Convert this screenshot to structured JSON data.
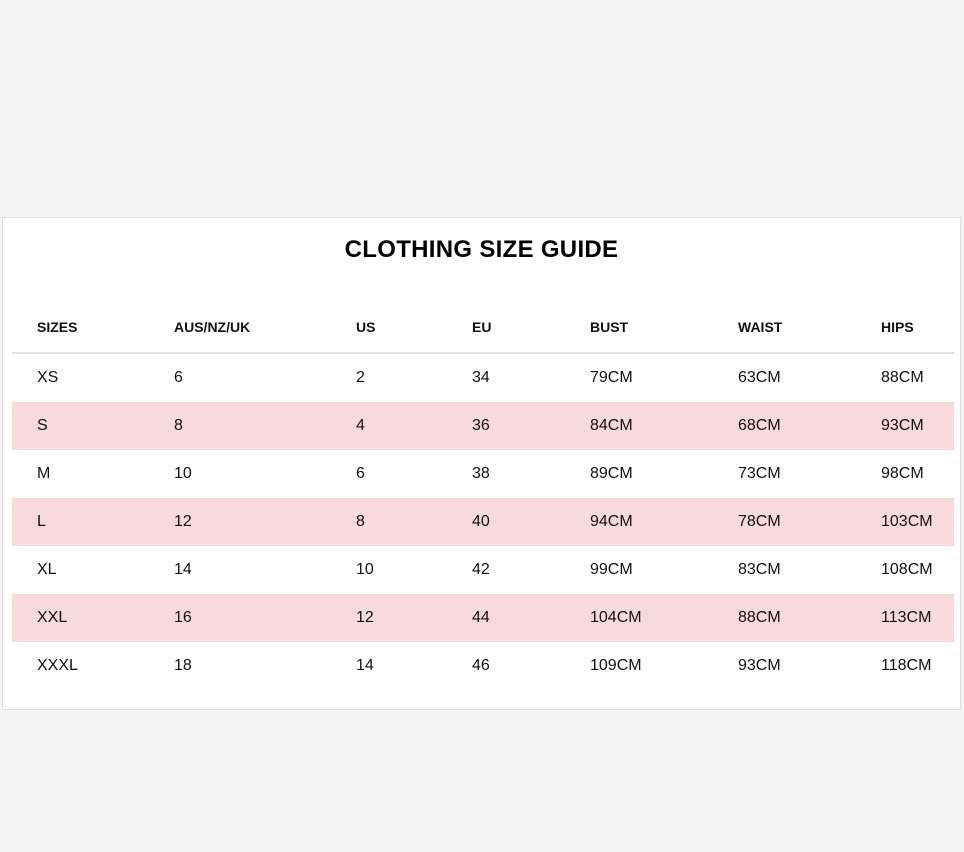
{
  "title": "CLOTHING SIZE GUIDE",
  "colors": {
    "stripe": "#f8d9dc",
    "background": "#f5f5f5"
  },
  "headers": [
    "SIZES",
    "AUS/NZ/UK",
    "US",
    "EU",
    "BUST",
    "WAIST",
    "HIPS"
  ],
  "rows": [
    [
      "XS",
      "6",
      "2",
      "34",
      "79CM",
      "63CM",
      "88CM"
    ],
    [
      "S",
      "8",
      "4",
      "36",
      "84CM",
      "68CM",
      "93CM"
    ],
    [
      "M",
      "10",
      "6",
      "38",
      "89CM",
      "73CM",
      "98CM"
    ],
    [
      "L",
      "12",
      "8",
      "40",
      "94CM",
      "78CM",
      "103CM"
    ],
    [
      "XL",
      "14",
      "10",
      "42",
      "99CM",
      "83CM",
      "108CM"
    ],
    [
      "XXL",
      "16",
      "12",
      "44",
      "104CM",
      "88CM",
      "113CM"
    ],
    [
      "XXXL",
      "18",
      "14",
      "46",
      "109CM",
      "93CM",
      "118CM"
    ]
  ]
}
